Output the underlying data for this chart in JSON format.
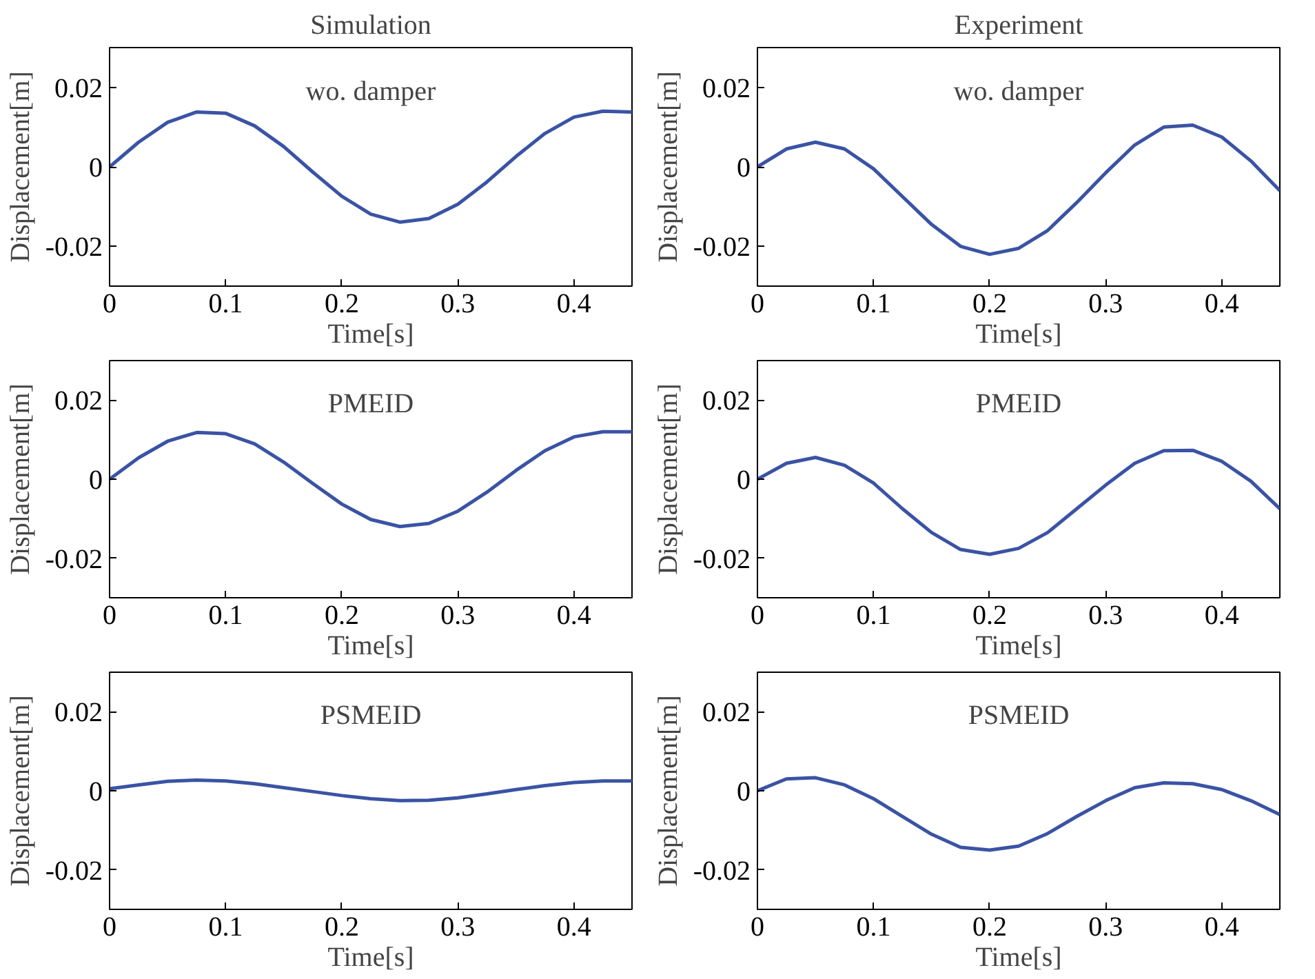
{
  "chart_data": [
    {
      "type": "line",
      "title": "Simulation",
      "xlabel": "Time[s]",
      "ylabel": "Displacement[m]",
      "annotations": [
        "wo. damper"
      ],
      "xlim": [
        0,
        0.45
      ],
      "ylim": [
        -0.03,
        0.03
      ],
      "xticks": [
        0,
        0.1,
        0.2,
        0.3,
        0.4
      ],
      "yticks": [
        -0.02,
        0,
        0.02
      ],
      "grid": false,
      "x": [
        0,
        0.025,
        0.05,
        0.075,
        0.1,
        0.125,
        0.15,
        0.175,
        0.2,
        0.225,
        0.25,
        0.275,
        0.3,
        0.325,
        0.35,
        0.375,
        0.4,
        0.425,
        0.45
      ],
      "series": [
        {
          "color": "#3a53a4",
          "values": [
            0,
            0.0062,
            0.0112,
            0.0138,
            0.0135,
            0.0103,
            0.0051,
            -0.0013,
            -0.0074,
            -0.0119,
            -0.0139,
            -0.013,
            -0.0094,
            -0.0038,
            0.0026,
            0.0084,
            0.0125,
            0.014,
            0.0138
          ]
        }
      ]
    },
    {
      "type": "line",
      "title": "Experiment",
      "xlabel": "Time[s]",
      "ylabel": "Displacement[m]",
      "annotations": [
        "wo. damper"
      ],
      "xlim": [
        0,
        0.45
      ],
      "ylim": [
        -0.03,
        0.03
      ],
      "xticks": [
        0,
        0.1,
        0.2,
        0.3,
        0.4
      ],
      "yticks": [
        -0.02,
        0,
        0.02
      ],
      "grid": false,
      "x": [
        0,
        0.025,
        0.05,
        0.075,
        0.1,
        0.125,
        0.15,
        0.175,
        0.2,
        0.225,
        0.25,
        0.275,
        0.3,
        0.325,
        0.35,
        0.375,
        0.4,
        0.425,
        0.45
      ],
      "series": [
        {
          "color": "#3a53a4",
          "values": [
            0,
            0.0045,
            0.0062,
            0.0045,
            -0.0005,
            -0.0075,
            -0.0145,
            -0.02,
            -0.022,
            -0.0205,
            -0.016,
            -0.009,
            -0.0015,
            0.0055,
            0.01,
            0.0105,
            0.0075,
            0.0015,
            -0.006
          ]
        }
      ]
    },
    {
      "type": "line",
      "xlabel": "Time[s]",
      "ylabel": "Displacement[m]",
      "annotations": [
        "PMEID"
      ],
      "xlim": [
        0,
        0.45
      ],
      "ylim": [
        -0.03,
        0.03
      ],
      "xticks": [
        0,
        0.1,
        0.2,
        0.3,
        0.4
      ],
      "yticks": [
        -0.02,
        0,
        0.02
      ],
      "grid": false,
      "x": [
        0,
        0.025,
        0.05,
        0.075,
        0.1,
        0.125,
        0.15,
        0.175,
        0.2,
        0.225,
        0.25,
        0.275,
        0.3,
        0.325,
        0.35,
        0.375,
        0.4,
        0.425,
        0.45
      ],
      "series": [
        {
          "color": "#3a53a4",
          "values": [
            0,
            0.0054,
            0.0096,
            0.0118,
            0.0115,
            0.0089,
            0.0043,
            -0.0011,
            -0.0063,
            -0.0102,
            -0.012,
            -0.0112,
            -0.0081,
            -0.0033,
            0.0022,
            0.0072,
            0.0107,
            0.012,
            0.012
          ]
        }
      ]
    },
    {
      "type": "line",
      "xlabel": "Time[s]",
      "ylabel": "Displacement[m]",
      "annotations": [
        "PMEID"
      ],
      "xlim": [
        0,
        0.45
      ],
      "ylim": [
        -0.03,
        0.03
      ],
      "xticks": [
        0,
        0.1,
        0.2,
        0.3,
        0.4
      ],
      "yticks": [
        -0.02,
        0,
        0.02
      ],
      "grid": false,
      "x": [
        0,
        0.025,
        0.05,
        0.075,
        0.1,
        0.125,
        0.15,
        0.175,
        0.2,
        0.225,
        0.25,
        0.275,
        0.3,
        0.325,
        0.35,
        0.375,
        0.4,
        0.425,
        0.45
      ],
      "series": [
        {
          "color": "#3a53a4",
          "values": [
            0,
            0.004,
            0.0055,
            0.0035,
            -0.001,
            -0.0075,
            -0.0135,
            -0.0178,
            -0.019,
            -0.0175,
            -0.0135,
            -0.0075,
            -0.0015,
            0.004,
            0.0072,
            0.0073,
            0.0045,
            -0.0005,
            -0.0075
          ]
        }
      ]
    },
    {
      "type": "line",
      "xlabel": "Time[s]",
      "ylabel": "Displacement[m]",
      "annotations": [
        "PSMEID"
      ],
      "xlim": [
        0,
        0.45
      ],
      "ylim": [
        -0.03,
        0.03
      ],
      "xticks": [
        0,
        0.1,
        0.2,
        0.3,
        0.4
      ],
      "yticks": [
        -0.02,
        0,
        0.02
      ],
      "grid": false,
      "x": [
        0,
        0.025,
        0.05,
        0.075,
        0.1,
        0.125,
        0.15,
        0.175,
        0.2,
        0.225,
        0.25,
        0.275,
        0.3,
        0.325,
        0.35,
        0.375,
        0.4,
        0.425,
        0.45
      ],
      "series": [
        {
          "color": "#3a53a4",
          "values": [
            0.0005,
            0.0015,
            0.0024,
            0.0027,
            0.0025,
            0.0018,
            0.0008,
            -0.0002,
            -0.0012,
            -0.002,
            -0.0025,
            -0.0024,
            -0.0018,
            -0.0008,
            0.0003,
            0.0013,
            0.0021,
            0.0025,
            0.0025
          ]
        }
      ]
    },
    {
      "type": "line",
      "xlabel": "Time[s]",
      "ylabel": "Displacement[m]",
      "annotations": [
        "PSMEID"
      ],
      "xlim": [
        0,
        0.45
      ],
      "ylim": [
        -0.03,
        0.03
      ],
      "xticks": [
        0,
        0.1,
        0.2,
        0.3,
        0.4
      ],
      "yticks": [
        -0.02,
        0,
        0.02
      ],
      "grid": false,
      "x": [
        0,
        0.025,
        0.05,
        0.075,
        0.1,
        0.125,
        0.15,
        0.175,
        0.2,
        0.225,
        0.25,
        0.275,
        0.3,
        0.325,
        0.35,
        0.375,
        0.4,
        0.425,
        0.45
      ],
      "series": [
        {
          "color": "#3a53a4",
          "values": [
            0,
            0.003,
            0.0033,
            0.0015,
            -0.002,
            -0.0065,
            -0.011,
            -0.0143,
            -0.015,
            -0.014,
            -0.0108,
            -0.0065,
            -0.0025,
            0.0008,
            0.002,
            0.0018,
            0.0003,
            -0.0025,
            -0.006
          ]
        }
      ]
    }
  ]
}
